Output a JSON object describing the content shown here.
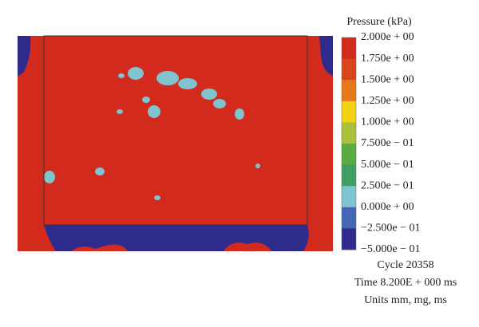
{
  "legend": {
    "title": "Pressure (kPa)",
    "labels": [
      "2.000e + 00",
      "1.750e + 00",
      "1.500e + 00",
      "1.250e + 00",
      "1.000e + 00",
      "7.500e − 01",
      "5.000e − 01",
      "2.500e − 01",
      "0.000e + 00",
      "−2.500e − 01",
      "−5.000e − 01"
    ],
    "bands": [
      "#d22b1e",
      "#d8441b",
      "#e8791a",
      "#f3d214",
      "#a9c23a",
      "#5aac3f",
      "#3f9f62",
      "#7fc4cf",
      "#4468b4",
      "#2e2b8c"
    ]
  },
  "footer": {
    "cycle": "Cycle 20358",
    "time": "Time 8.200E + 000 ms",
    "units": "Units mm, mg, ms"
  }
}
